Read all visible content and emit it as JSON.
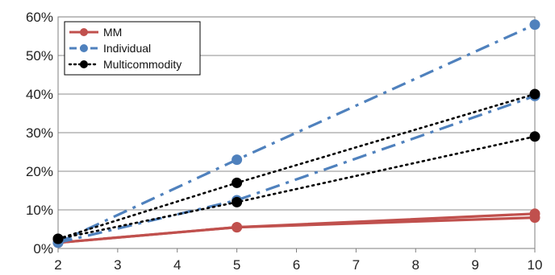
{
  "chart_data": {
    "type": "line",
    "title": "",
    "xlabel": "",
    "ylabel": "",
    "x_ticks": [
      2,
      3,
      4,
      5,
      6,
      7,
      8,
      9,
      10
    ],
    "y_ticks": [
      "0%",
      "10%",
      "20%",
      "30%",
      "40%",
      "50%",
      "60%"
    ],
    "xlim": [
      2,
      10
    ],
    "ylim": [
      0,
      60
    ],
    "grid": "horizontal",
    "legend_position": "top-left",
    "legend": [
      {
        "name": "MM",
        "color": "#c0504d",
        "line_style": "solid"
      },
      {
        "name": "Individual",
        "color": "#4f81bd",
        "line_style": "dash-dot"
      },
      {
        "name": "Multicommodity",
        "color": "#000000",
        "line_style": "dotted"
      }
    ],
    "series": [
      {
        "name": "MM",
        "color": "#c0504d",
        "line_style": "solid",
        "x": [
          2,
          5,
          10
        ],
        "values": [
          1.5,
          5.5,
          9.0
        ]
      },
      {
        "name": "MM",
        "color": "#c0504d",
        "line_style": "solid",
        "x": [
          2,
          5,
          10
        ],
        "values": [
          1.5,
          5.5,
          8.0
        ]
      },
      {
        "name": "Individual",
        "color": "#4f81bd",
        "line_style": "dash-dot",
        "x": [
          2,
          5,
          10
        ],
        "values": [
          1.5,
          23.0,
          58.0
        ]
      },
      {
        "name": "Individual",
        "color": "#4f81bd",
        "line_style": "dash-dot",
        "x": [
          2,
          5,
          10
        ],
        "values": [
          1.5,
          12.5,
          39.5
        ]
      },
      {
        "name": "Multicommodity",
        "color": "#000000",
        "line_style": "dotted",
        "x": [
          2,
          5,
          10
        ],
        "values": [
          2.5,
          17.0,
          40.0
        ]
      },
      {
        "name": "Multicommodity",
        "color": "#000000",
        "line_style": "dotted",
        "x": [
          2,
          5,
          10
        ],
        "values": [
          2.5,
          12.0,
          29.0
        ]
      }
    ]
  }
}
